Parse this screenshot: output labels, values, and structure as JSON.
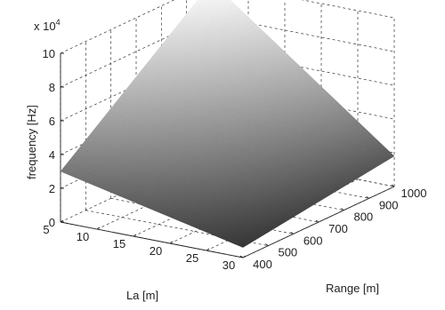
{
  "chart_data": {
    "type": "surface",
    "title": "",
    "xlabel": "La [m]",
    "ylabel": "Range [m]",
    "zlabel": "frequency [Hz]",
    "z_multiplier_label": "x 10",
    "z_multiplier_exponent": "4",
    "x_ticks": [
      10,
      15,
      20,
      25,
      30
    ],
    "y_ticks": [
      400,
      500,
      600,
      700,
      800,
      900,
      1000
    ],
    "z_ticks": [
      0,
      2,
      4,
      6,
      8,
      10
    ],
    "xlim": [
      5,
      30
    ],
    "ylim": [
      400,
      1000
    ],
    "zlim": [
      0,
      10
    ],
    "grid": true,
    "colormap": "gray",
    "corners": [
      {
        "La": 5,
        "Range": 400,
        "frequency": 3.0
      },
      {
        "La": 5,
        "Range": 1000,
        "frequency": 10.0
      },
      {
        "La": 30,
        "Range": 400,
        "frequency": 0.6
      },
      {
        "La": 30,
        "Range": 1000,
        "frequency": 1.8
      }
    ]
  }
}
